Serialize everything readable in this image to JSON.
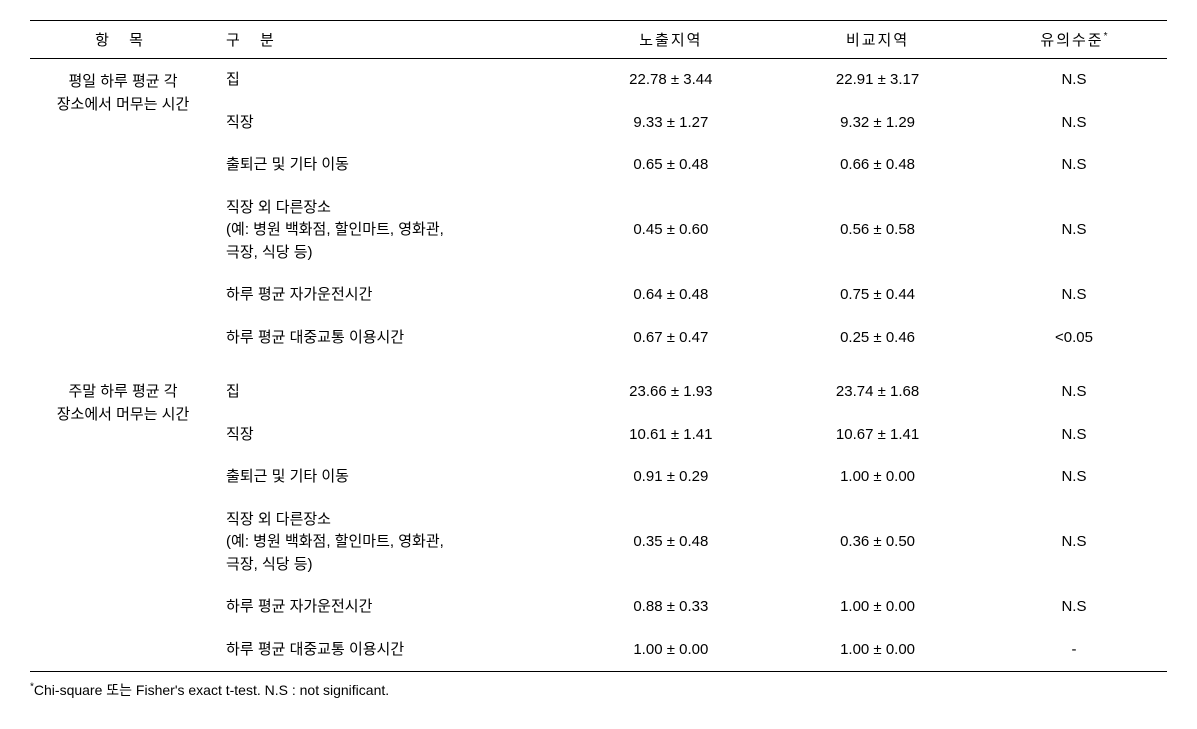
{
  "headers": {
    "category": "항 목",
    "sub": "구   분",
    "exposure": "노출지역",
    "compare": "비교지역",
    "sig": "유의수준",
    "sig_sup": "*"
  },
  "sections": [
    {
      "category_line1": "평일 하루 평균 각",
      "category_line2": "장소에서 머무는 시간",
      "rows": [
        {
          "sub": "집",
          "exp": "22.78 ± 3.44",
          "cmp": "22.91 ± 3.17",
          "sig": "N.S"
        },
        {
          "sub": "직장",
          "exp": "9.33 ± 1.27",
          "cmp": "9.32 ± 1.29",
          "sig": "N.S"
        },
        {
          "sub": "출퇴근 및 기타 이동",
          "exp": "0.65 ± 0.48",
          "cmp": "0.66 ± 0.48",
          "sig": "N.S"
        },
        {
          "sub": "직장 외 다른장소\n(예: 병원 백화점, 할인마트, 영화관,\n극장, 식당 등)",
          "exp": "0.45 ± 0.60",
          "cmp": "0.56 ± 0.58",
          "sig": "N.S"
        },
        {
          "sub": "하루 평균 자가운전시간",
          "exp": "0.64 ± 0.48",
          "cmp": "0.75 ± 0.44",
          "sig": "N.S"
        },
        {
          "sub": "하루 평균 대중교통 이용시간",
          "exp": "0.67 ± 0.47",
          "cmp": "0.25 ± 0.46",
          "sig": "<0.05"
        }
      ]
    },
    {
      "category_line1": "주말 하루 평균 각",
      "category_line2": "장소에서 머무는 시간",
      "rows": [
        {
          "sub": "집",
          "exp": "23.66 ± 1.93",
          "cmp": "23.74 ± 1.68",
          "sig": "N.S"
        },
        {
          "sub": "직장",
          "exp": "10.61 ± 1.41",
          "cmp": "10.67 ± 1.41",
          "sig": "N.S"
        },
        {
          "sub": "출퇴근 및 기타 이동",
          "exp": "0.91 ± 0.29",
          "cmp": "1.00 ± 0.00",
          "sig": "N.S"
        },
        {
          "sub": "직장 외 다른장소\n(예: 병원 백화점, 할인마트, 영화관,\n극장, 식당 등)",
          "exp": "0.35 ± 0.48",
          "cmp": "0.36 ± 0.50",
          "sig": "N.S"
        },
        {
          "sub": "하루 평균 자가운전시간",
          "exp": "0.88 ± 0.33",
          "cmp": "1.00 ± 0.00",
          "sig": "N.S"
        },
        {
          "sub": "하루 평균 대중교통 이용시간",
          "exp": "1.00 ± 0.00",
          "cmp": "1.00 ± 0.00",
          "sig": "-"
        }
      ]
    }
  ],
  "footnote": {
    "sup": "*",
    "text": "Chi-square 또는 Fisher's exact t-test. N.S : not significant."
  }
}
